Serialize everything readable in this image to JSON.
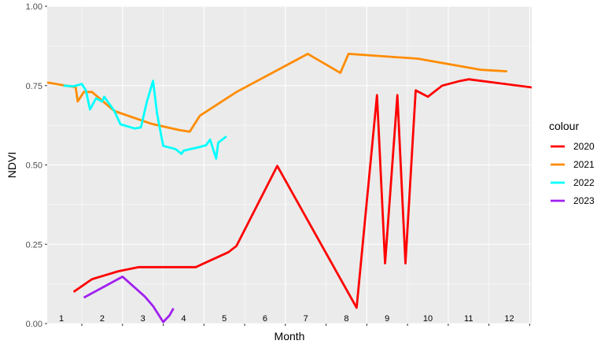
{
  "chart_data": {
    "type": "line",
    "xlabel": "Month",
    "ylabel": "NDVI",
    "ylim": [
      0,
      1
    ],
    "xlim": [
      0.65,
      12.55
    ],
    "y_ticks": [
      "0.00",
      "0.25",
      "0.50",
      "0.75",
      "1.00"
    ],
    "y_tick_values": [
      0,
      0.25,
      0.5,
      0.75,
      1
    ],
    "month_labels": [
      "1",
      "2",
      "3",
      "4",
      "5",
      "6",
      "7",
      "8",
      "9",
      "10",
      "11",
      "12"
    ],
    "grid": true,
    "background": "#ebebeb",
    "legend": {
      "title": "colour",
      "position": "right"
    },
    "series": [
      {
        "name": "2020",
        "color": "#ff0000",
        "points": [
          [
            1.3,
            0.1
          ],
          [
            1.75,
            0.14
          ],
          [
            2.4,
            0.165
          ],
          [
            2.9,
            0.178
          ],
          [
            3.5,
            0.178
          ],
          [
            4.3,
            0.178
          ],
          [
            5.1,
            0.225
          ],
          [
            5.3,
            0.245
          ],
          [
            6.3,
            0.497
          ],
          [
            8.25,
            0.05
          ],
          [
            8.75,
            0.72
          ],
          [
            8.95,
            0.19
          ],
          [
            9.25,
            0.72
          ],
          [
            9.45,
            0.19
          ],
          [
            9.7,
            0.735
          ],
          [
            10.0,
            0.715
          ],
          [
            10.35,
            0.75
          ],
          [
            10.8,
            0.765
          ],
          [
            11.0,
            0.77
          ],
          [
            12.95,
            0.738
          ]
        ]
      },
      {
        "name": "2021",
        "color": "#ff8c00",
        "points": [
          [
            0.65,
            0.76
          ],
          [
            1.1,
            0.75
          ],
          [
            1.35,
            0.745
          ],
          [
            1.4,
            0.7
          ],
          [
            1.55,
            0.73
          ],
          [
            1.75,
            0.73
          ],
          [
            2.3,
            0.67
          ],
          [
            3.2,
            0.63
          ],
          [
            3.9,
            0.61
          ],
          [
            4.15,
            0.605
          ],
          [
            4.4,
            0.655
          ],
          [
            5.3,
            0.73
          ],
          [
            7.05,
            0.85
          ],
          [
            7.85,
            0.79
          ],
          [
            8.05,
            0.85
          ],
          [
            9.75,
            0.835
          ],
          [
            11.3,
            0.8
          ],
          [
            11.95,
            0.795
          ]
        ]
      },
      {
        "name": "2022",
        "color": "#00ffff",
        "points": [
          [
            1.05,
            0.75
          ],
          [
            1.3,
            0.748
          ],
          [
            1.5,
            0.755
          ],
          [
            1.6,
            0.735
          ],
          [
            1.7,
            0.675
          ],
          [
            1.85,
            0.71
          ],
          [
            2.0,
            0.7
          ],
          [
            2.05,
            0.715
          ],
          [
            2.3,
            0.67
          ],
          [
            2.45,
            0.628
          ],
          [
            2.8,
            0.615
          ],
          [
            2.95,
            0.618
          ],
          [
            3.1,
            0.7
          ],
          [
            3.25,
            0.765
          ],
          [
            3.35,
            0.66
          ],
          [
            3.5,
            0.56
          ],
          [
            3.8,
            0.55
          ],
          [
            3.95,
            0.535
          ],
          [
            4.0,
            0.545
          ],
          [
            4.35,
            0.555
          ],
          [
            4.55,
            0.562
          ],
          [
            4.65,
            0.58
          ],
          [
            4.8,
            0.52
          ],
          [
            4.85,
            0.57
          ],
          [
            5.05,
            0.59
          ]
        ]
      },
      {
        "name": "2023",
        "color": "#a020f0",
        "points": [
          [
            1.55,
            0.082
          ],
          [
            2.1,
            0.12
          ],
          [
            2.5,
            0.148
          ],
          [
            3.05,
            0.085
          ],
          [
            3.25,
            0.055
          ],
          [
            3.5,
            0.005
          ],
          [
            3.65,
            0.025
          ],
          [
            3.75,
            0.048
          ]
        ]
      }
    ]
  }
}
